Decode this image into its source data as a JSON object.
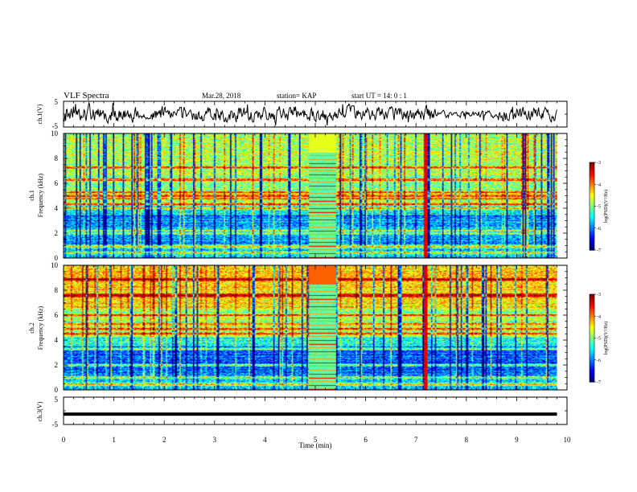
{
  "header": {
    "title": "VLF Spectra",
    "date": "Mar.28, 2018",
    "station": "station= KAP",
    "start_ut": "start UT =  14: 0  : 1"
  },
  "chart_data": {
    "type": "heatmap",
    "x_axis": {
      "label": "Time (min)",
      "range": [
        0,
        10
      ],
      "ticks": [
        "0",
        "1",
        "2",
        "3",
        "4",
        "5",
        "6",
        "7",
        "8",
        "9",
        "10"
      ]
    },
    "panels": [
      {
        "id": "ch1-waveform",
        "type": "line",
        "ylabel": "ch.1(V)",
        "ylim": [
          -5,
          5
        ],
        "ticks": [
          "5",
          "-5"
        ],
        "data_end_min": 9.8
      },
      {
        "id": "ch1-spectrogram",
        "type": "heatmap",
        "ylabel_channel": "ch.1",
        "ylabel": "Frequency (kHz)",
        "ylim": [
          0,
          10
        ],
        "ticks": [
          "0",
          "2",
          "4",
          "6",
          "8",
          "10"
        ],
        "data_end_min": 9.8,
        "colorbar": {
          "label": "log(PSD)(V²/Hz)",
          "range": [
            -7,
            -3
          ],
          "ticks": [
            "-3",
            "-4",
            "-5",
            "-6",
            "-7"
          ],
          "colormap": [
            "#00007f",
            "#0000ff",
            "#007fff",
            "#00ffff",
            "#7fff7f",
            "#ffff00",
            "#ff7f00",
            "#ff0000",
            "#7f0000"
          ]
        },
        "features": {
          "interference_block_min": [
            4.88,
            5.42
          ],
          "strong_vertical_line_min": 7.2,
          "horizontal_lines_khz": [
            0.4,
            0.9,
            2.0,
            2.2,
            4.0,
            4.3,
            4.8,
            5.0,
            5.3,
            6.3,
            7.3
          ]
        }
      },
      {
        "id": "ch2-spectrogram",
        "type": "heatmap",
        "ylabel_channel": "ch.2",
        "ylabel": "Frequency (kHz)",
        "ylim": [
          0,
          10
        ],
        "ticks": [
          "0",
          "2",
          "4",
          "6",
          "8",
          "10"
        ],
        "data_end_min": 9.8,
        "colorbar": {
          "label": "log(PSD)(V²/Hz)",
          "range": [
            -7,
            -3
          ],
          "ticks": [
            "-3",
            "-4",
            "-5",
            "-6",
            "-7"
          ],
          "colormap": [
            "#00007f",
            "#0000ff",
            "#007fff",
            "#00ffff",
            "#7fff7f",
            "#ffff00",
            "#ff7f00",
            "#ff0000",
            "#7f0000"
          ]
        },
        "features": {
          "interference_block_min": [
            4.88,
            5.42
          ],
          "strong_vertical_line_min": 7.2,
          "horizontal_lines_khz": [
            0.4,
            1.0,
            2.0,
            3.3,
            4.5,
            4.9,
            5.3,
            6.0,
            7.6,
            8.9
          ]
        }
      },
      {
        "id": "ch3-waveform",
        "type": "line",
        "ylabel": "ch.3(V)",
        "ylim": [
          -5,
          5
        ],
        "ticks": [
          "5",
          "-5"
        ],
        "level_v": -1.2,
        "data_end_min": 9.8
      }
    ]
  }
}
